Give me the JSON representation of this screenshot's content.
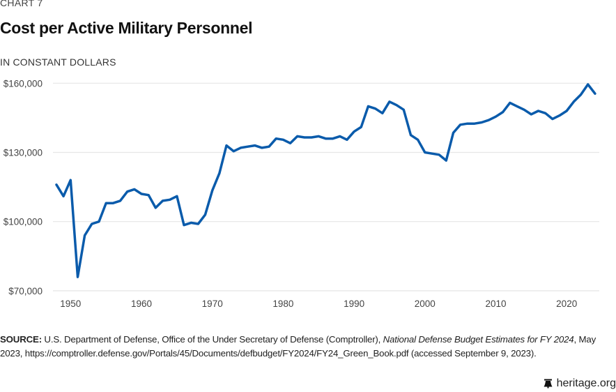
{
  "header": {
    "kicker": "CHART 7",
    "title": "Cost per Active Military Personnel",
    "subtitle": "IN CONSTANT DOLLARS"
  },
  "source": {
    "label": "SOURCE:",
    "text_before": " U.S. Department of Defense, Office of the Under Secretary of Defense (Comptroller), ",
    "italic": "National Defense Budget Estimates for FY 2024",
    "text_after": ", May 2023, https://comptroller.defense.gov/Portals/45/Documents/defbudget/FY2024/FY24_Green_Book.pdf (accessed September 9, 2023)."
  },
  "brand": {
    "icon": "liberty-bell-icon",
    "text": "heritage.org"
  },
  "colors": {
    "line": "#0a5bab",
    "grid": "#e6e6e6"
  },
  "chart_data": {
    "type": "line",
    "title": "Cost per Active Military Personnel",
    "subtitle": "IN CONSTANT DOLLARS",
    "xlabel": "",
    "ylabel": "",
    "xlim": [
      1948,
      2024
    ],
    "ylim": [
      70000,
      160000
    ],
    "grid": true,
    "legend": "none",
    "x_ticks": [
      1950,
      1960,
      1970,
      1980,
      1990,
      2000,
      2010,
      2020
    ],
    "x_tick_labels": [
      "1950",
      "1960",
      "1970",
      "1980",
      "1990",
      "2000",
      "2010",
      "2020"
    ],
    "y_ticks": [
      70000,
      100000,
      130000,
      160000
    ],
    "y_tick_labels": [
      "$70,000",
      "$100,000",
      "$130,000",
      "$160,000"
    ],
    "series": [
      {
        "name": "Cost per Active Military Personnel",
        "x": [
          1948,
          1949,
          1950,
          1951,
          1952,
          1953,
          1954,
          1955,
          1956,
          1957,
          1958,
          1959,
          1960,
          1961,
          1962,
          1963,
          1964,
          1965,
          1966,
          1967,
          1968,
          1969,
          1970,
          1971,
          1972,
          1973,
          1974,
          1975,
          1976,
          1977,
          1978,
          1979,
          1980,
          1981,
          1982,
          1983,
          1984,
          1985,
          1986,
          1987,
          1988,
          1989,
          1990,
          1991,
          1992,
          1993,
          1994,
          1995,
          1996,
          1997,
          1998,
          1999,
          2000,
          2001,
          2002,
          2003,
          2004,
          2005,
          2006,
          2007,
          2008,
          2009,
          2010,
          2011,
          2012,
          2013,
          2014,
          2015,
          2016,
          2017,
          2018,
          2019,
          2020,
          2021,
          2022,
          2023,
          2024
        ],
        "values": [
          116000,
          111000,
          118000,
          76000,
          94000,
          99000,
          100000,
          108000,
          108000,
          109000,
          113000,
          114000,
          112000,
          111500,
          106000,
          109000,
          109500,
          111000,
          98500,
          99500,
          99000,
          103000,
          113500,
          121000,
          133000,
          130500,
          132000,
          132500,
          133000,
          132000,
          132500,
          136000,
          135500,
          134000,
          137000,
          136500,
          136500,
          137000,
          136000,
          136000,
          137000,
          135500,
          139000,
          141000,
          150000,
          149000,
          147000,
          152000,
          150500,
          148500,
          137500,
          135500,
          130000,
          129500,
          129000,
          126500,
          138500,
          142000,
          142500,
          142500,
          143000,
          144000,
          145500,
          147500,
          151500,
          150000,
          148500,
          146500,
          148000,
          147000,
          144500,
          146000,
          148000,
          152000,
          155000,
          159500,
          155500
        ]
      }
    ]
  }
}
